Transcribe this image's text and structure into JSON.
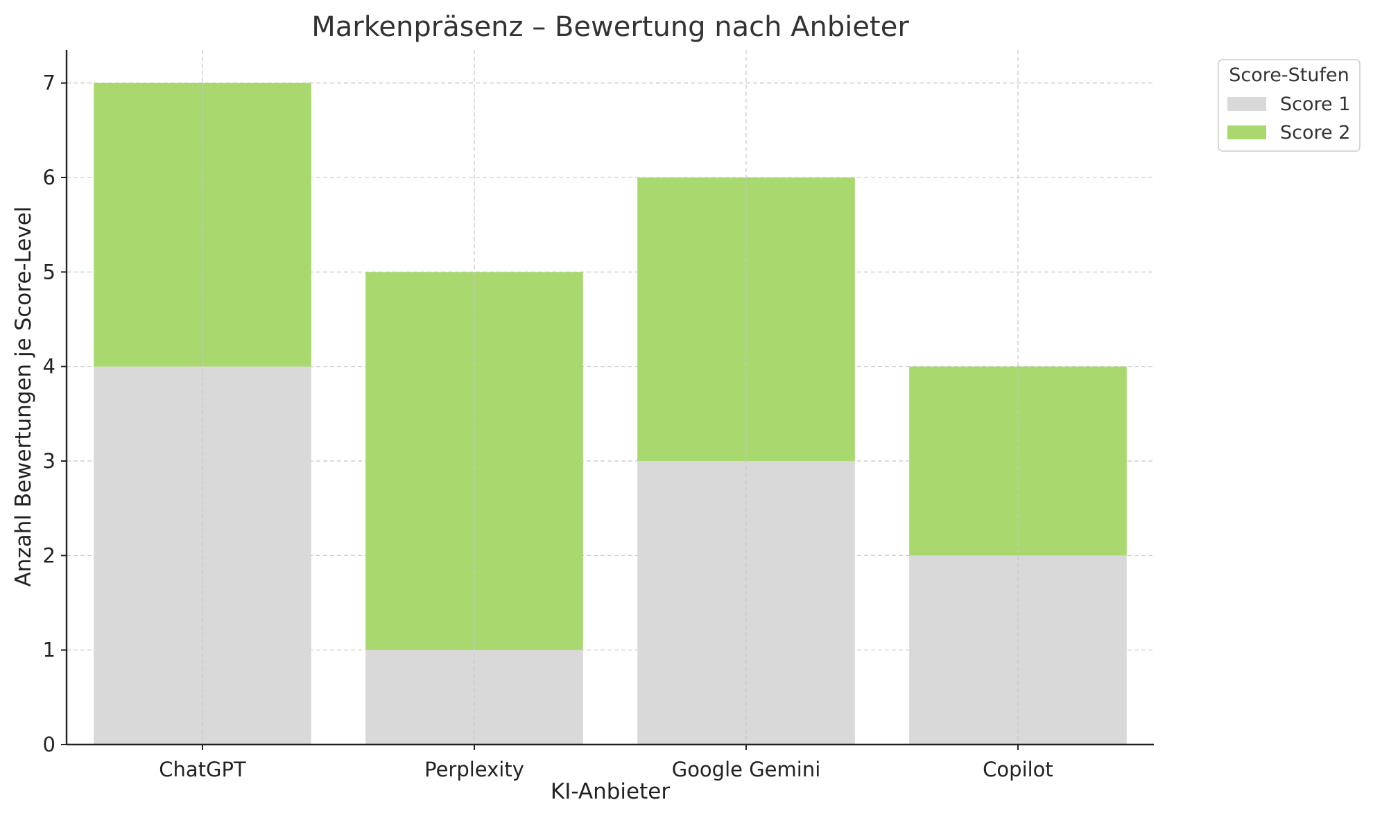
{
  "chart_data": {
    "type": "bar",
    "stacked": true,
    "title": "Markenpräsenz – Bewertung nach Anbieter",
    "xlabel": "KI-Anbieter",
    "ylabel": "Anzahl Bewertungen je Score-Level",
    "categories": [
      "ChatGPT",
      "Perplexity",
      "Google Gemini",
      "Copilot"
    ],
    "series": [
      {
        "name": "Score 1",
        "values": [
          4,
          1,
          3,
          2
        ],
        "color": "#d9d9d9"
      },
      {
        "name": "Score 2",
        "values": [
          3,
          4,
          3,
          2
        ],
        "color": "#a8d86e"
      }
    ],
    "ylim": [
      0,
      7.35
    ],
    "yticks": [
      "0",
      "1",
      "2",
      "3",
      "4",
      "5",
      "6",
      "7"
    ],
    "grid": true,
    "legend": {
      "title": "Score-Stufen",
      "placement": "outside-top-right"
    }
  }
}
